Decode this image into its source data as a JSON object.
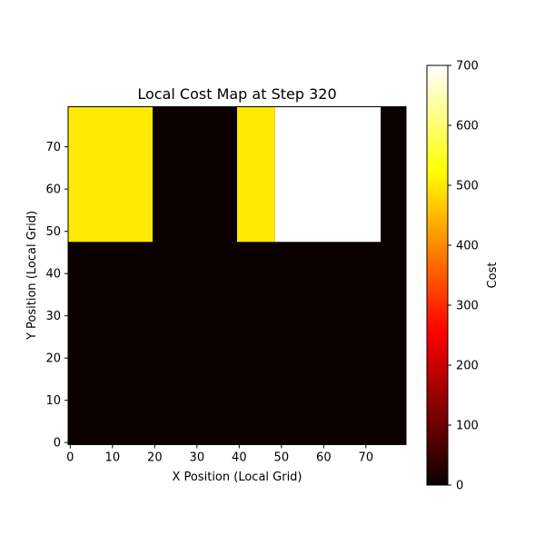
{
  "chart_data": {
    "type": "heatmap",
    "title": "Local Cost Map at Step 320",
    "xlabel": "X Position (Local Grid)",
    "ylabel": "Y Position (Local Grid)",
    "xlim": [
      0,
      80
    ],
    "ylim": [
      0,
      80
    ],
    "xticks": [
      0,
      10,
      20,
      30,
      40,
      50,
      60,
      70
    ],
    "yticks": [
      0,
      10,
      20,
      30,
      40,
      50,
      60,
      70
    ],
    "colormap": "hot",
    "colorbar": {
      "label": "Cost",
      "min": 0,
      "max": 700,
      "ticks": [
        0,
        100,
        200,
        300,
        400,
        500,
        600,
        700
      ]
    },
    "regions": [
      {
        "x": [
          0,
          80
        ],
        "y": [
          0,
          80
        ],
        "value": 0
      },
      {
        "x": [
          0,
          20
        ],
        "y": [
          48,
          80
        ],
        "value": 500
      },
      {
        "x": [
          40,
          49
        ],
        "y": [
          48,
          80
        ],
        "value": 500
      },
      {
        "x": [
          49,
          74
        ],
        "y": [
          48,
          80
        ],
        "value": 700
      }
    ],
    "grid": false
  }
}
